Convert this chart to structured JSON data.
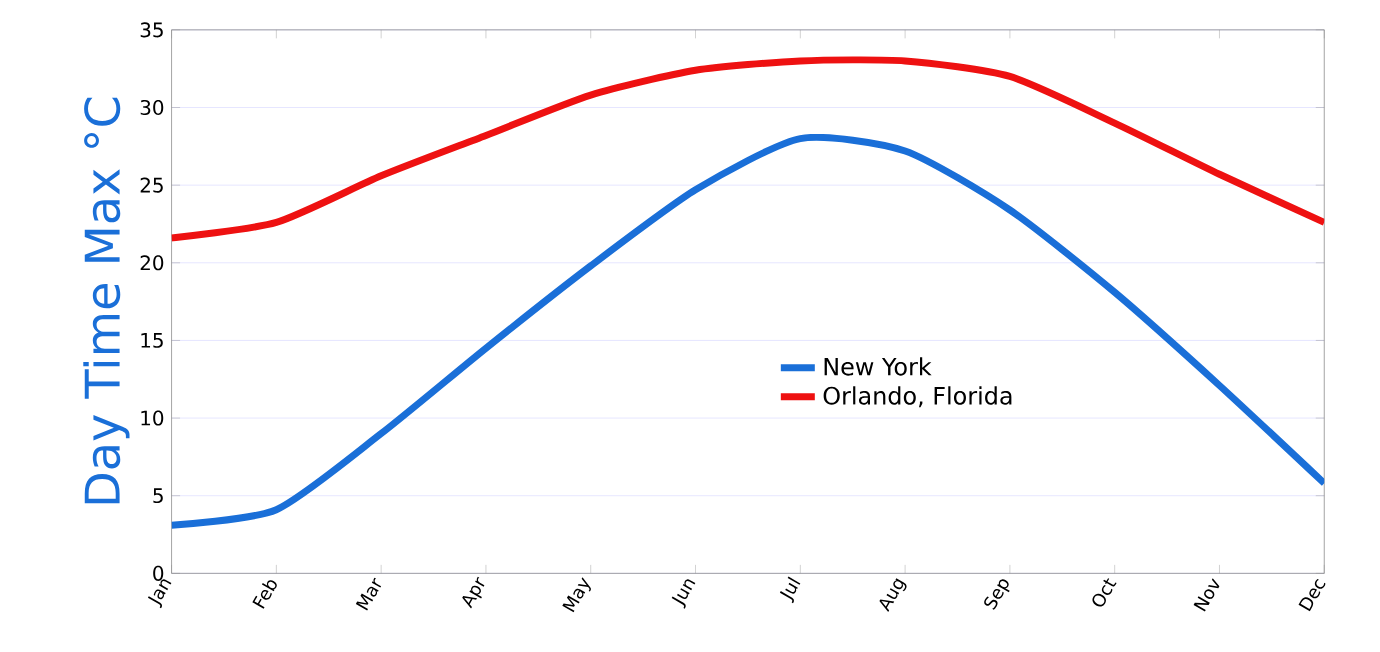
{
  "chart_data": {
    "type": "line",
    "ylabel": "Day Time Max °C",
    "categories": [
      "Jan",
      "Feb",
      "Mar",
      "Apr",
      "May",
      "Jun",
      "Jul",
      "Aug",
      "Sep",
      "Oct",
      "Nov",
      "Dec"
    ],
    "series": [
      {
        "name": "New York",
        "color": "#1a6fd8",
        "values": [
          3.1,
          4.1,
          9.0,
          14.5,
          19.8,
          24.7,
          28.0,
          27.2,
          23.4,
          18.1,
          12.1,
          5.8
        ]
      },
      {
        "name": "Orlando, Florida",
        "color": "#ee1111",
        "values": [
          21.6,
          22.6,
          25.6,
          28.2,
          30.8,
          32.4,
          33.0,
          33.0,
          32.0,
          29.0,
          25.7,
          22.6
        ]
      }
    ],
    "ylim": [
      0,
      35
    ],
    "yticks": [
      0,
      5,
      10,
      15,
      20,
      25,
      30,
      35
    ],
    "grid": "y",
    "legend": "center right",
    "marker": "none",
    "line_style": "solid"
  }
}
